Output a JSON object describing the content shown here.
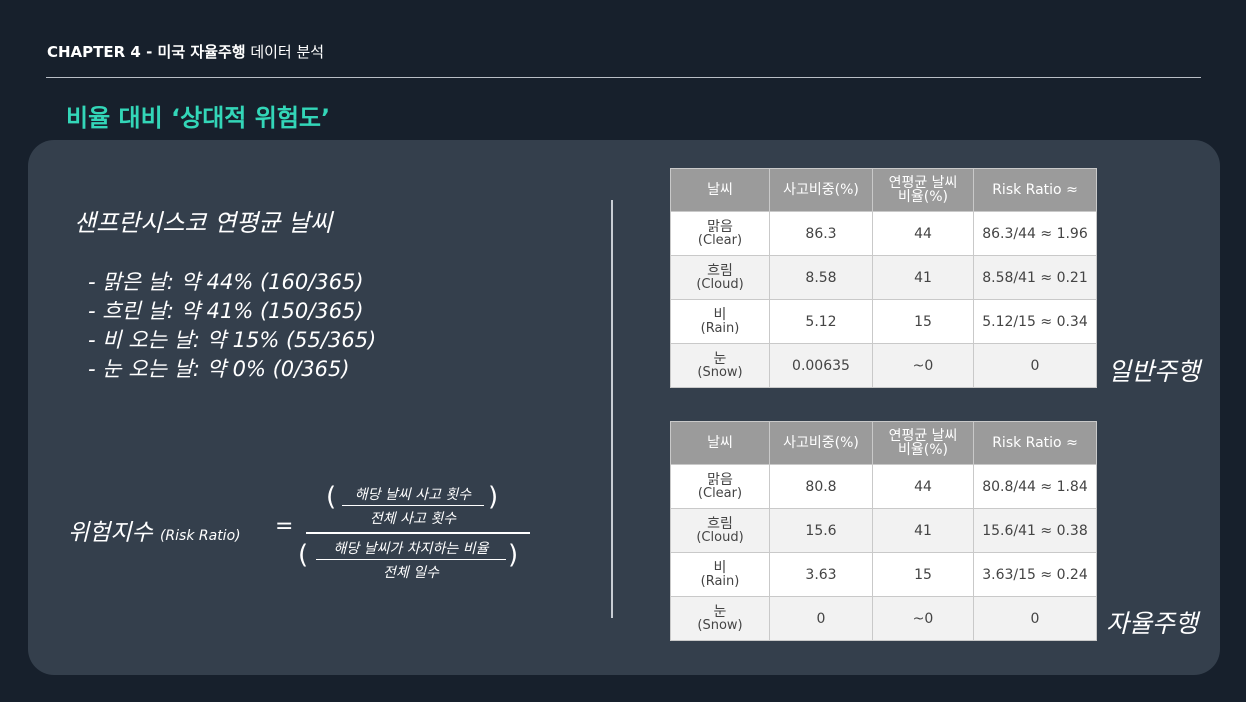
{
  "header": {
    "chapter_bold": "CHAPTER 4 - 미국 자율주행",
    "chapter_rest": " 데이터 분석",
    "title": "비율 대비 ‘상대적 위험도’"
  },
  "left": {
    "heading": "샌프란시스코 연평균 날씨",
    "stats": [
      "- 맑은 날: 약 44% (160/365)",
      "- 흐린 날: 약 41% (150/365)",
      "- 비 오는 날: 약 15% (55/365)",
      "- 눈 오는 날: 약 0% (0/365)"
    ],
    "formula": {
      "lhs": "위험지수",
      "lhs_sub": "(Risk Ratio)",
      "eq": "=",
      "num_top": "해당 날씨 사고 횟수",
      "num_bottom": "전체 사고 횟수",
      "den_top": "해당 날씨가 차지하는 비율",
      "den_bottom": "전체 일수",
      "lparen": "(",
      "rparen": ")"
    }
  },
  "tables": {
    "headers": [
      "날씨",
      "사고비중(%)",
      "연평균 날씨\n비율(%)",
      "Risk Ratio ≈"
    ],
    "general": {
      "label": "일반주행",
      "rows": [
        {
          "name": "맑음",
          "en": "(Clear)",
          "share": "86.3",
          "weather": "44",
          "ratio": "86.3/44 ≈ 1.96"
        },
        {
          "name": "흐림",
          "en": "(Cloud)",
          "share": "8.58",
          "weather": "41",
          "ratio": "8.58/41 ≈ 0.21"
        },
        {
          "name": "비",
          "en": "(Rain)",
          "share": "5.12",
          "weather": "15",
          "ratio": "5.12/15 ≈ 0.34"
        },
        {
          "name": "눈",
          "en": "(Snow)",
          "share": "0.00635",
          "weather": "~0",
          "ratio": "0"
        }
      ]
    },
    "autonomous": {
      "label": "자율주행",
      "rows": [
        {
          "name": "맑음",
          "en": "(Clear)",
          "share": "80.8",
          "weather": "44",
          "ratio": "80.8/44 ≈ 1.84"
        },
        {
          "name": "흐림",
          "en": "(Cloud)",
          "share": "15.6",
          "weather": "41",
          "ratio": "15.6/41 ≈ 0.38"
        },
        {
          "name": "비",
          "en": "(Rain)",
          "share": "3.63",
          "weather": "15",
          "ratio": "3.63/15 ≈ 0.24"
        },
        {
          "name": "눈",
          "en": "(Snow)",
          "share": "0",
          "weather": "~0",
          "ratio": "0"
        }
      ]
    }
  },
  "colors": {
    "background": "#17202c",
    "panel": "#343f4c",
    "accent": "#33d6b8",
    "table_header": "#9b9b9b"
  }
}
